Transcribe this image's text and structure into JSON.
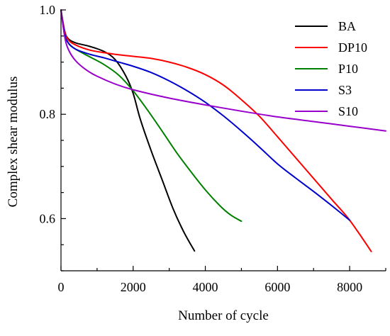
{
  "chart_data": {
    "type": "line",
    "title": "",
    "xlabel": "Number of cycle",
    "ylabel": "Complex shear modulus",
    "xlim": [
      0,
      9000
    ],
    "ylim": [
      0.5,
      1.0
    ],
    "xticks": [
      0,
      2000,
      4000,
      6000,
      8000
    ],
    "yticks": [
      0.6,
      0.8,
      1.0
    ],
    "ytick_labels": [
      "0.6",
      "0.8",
      "1.0"
    ],
    "grid": false,
    "legend_position": "top-right",
    "series": [
      {
        "name": "BA",
        "color": "#000000",
        "x": [
          0,
          100,
          200,
          400,
          800,
          1200,
          1500,
          1800,
          2000,
          2200,
          2500,
          2800,
          3100,
          3400,
          3700
        ],
        "y": [
          1.0,
          0.96,
          0.945,
          0.937,
          0.93,
          0.92,
          0.905,
          0.873,
          0.84,
          0.79,
          0.73,
          0.675,
          0.62,
          0.575,
          0.538
        ]
      },
      {
        "name": "DP10",
        "color": "#ff0000",
        "x": [
          0,
          100,
          200,
          400,
          800,
          1200,
          1600,
          2000,
          2500,
          3000,
          3500,
          4000,
          4500,
          5000,
          5500,
          6000,
          6500,
          7000,
          7500,
          8000,
          8600
        ],
        "y": [
          1.0,
          0.96,
          0.943,
          0.933,
          0.923,
          0.918,
          0.914,
          0.911,
          0.907,
          0.9,
          0.89,
          0.876,
          0.856,
          0.828,
          0.796,
          0.757,
          0.717,
          0.677,
          0.637,
          0.597,
          0.537
        ]
      },
      {
        "name": "P10",
        "color": "#008000",
        "x": [
          0,
          100,
          200,
          400,
          800,
          1200,
          1600,
          2000,
          2400,
          2800,
          3200,
          3600,
          4000,
          4400,
          4700,
          5000
        ],
        "y": [
          1.0,
          0.955,
          0.937,
          0.925,
          0.91,
          0.895,
          0.875,
          0.845,
          0.808,
          0.768,
          0.727,
          0.69,
          0.655,
          0.625,
          0.607,
          0.595
        ]
      },
      {
        "name": "S3",
        "color": "#0000cc",
        "x": [
          0,
          100,
          200,
          400,
          800,
          1200,
          1600,
          2000,
          2500,
          3000,
          3500,
          4000,
          4500,
          5000,
          5500,
          6000,
          6500,
          7000,
          7500,
          8000
        ],
        "y": [
          1.0,
          0.955,
          0.937,
          0.925,
          0.915,
          0.908,
          0.9,
          0.892,
          0.88,
          0.864,
          0.845,
          0.823,
          0.797,
          0.768,
          0.737,
          0.705,
          0.678,
          0.652,
          0.625,
          0.597
        ]
      },
      {
        "name": "S10",
        "color": "#9900cc",
        "x": [
          0,
          100,
          200,
          400,
          700,
          1000,
          1500,
          2000,
          3000,
          4000,
          5000,
          6000,
          7000,
          8000,
          9000
        ],
        "y": [
          1.0,
          0.95,
          0.925,
          0.903,
          0.885,
          0.873,
          0.858,
          0.847,
          0.831,
          0.818,
          0.806,
          0.795,
          0.786,
          0.777,
          0.768
        ]
      }
    ]
  }
}
